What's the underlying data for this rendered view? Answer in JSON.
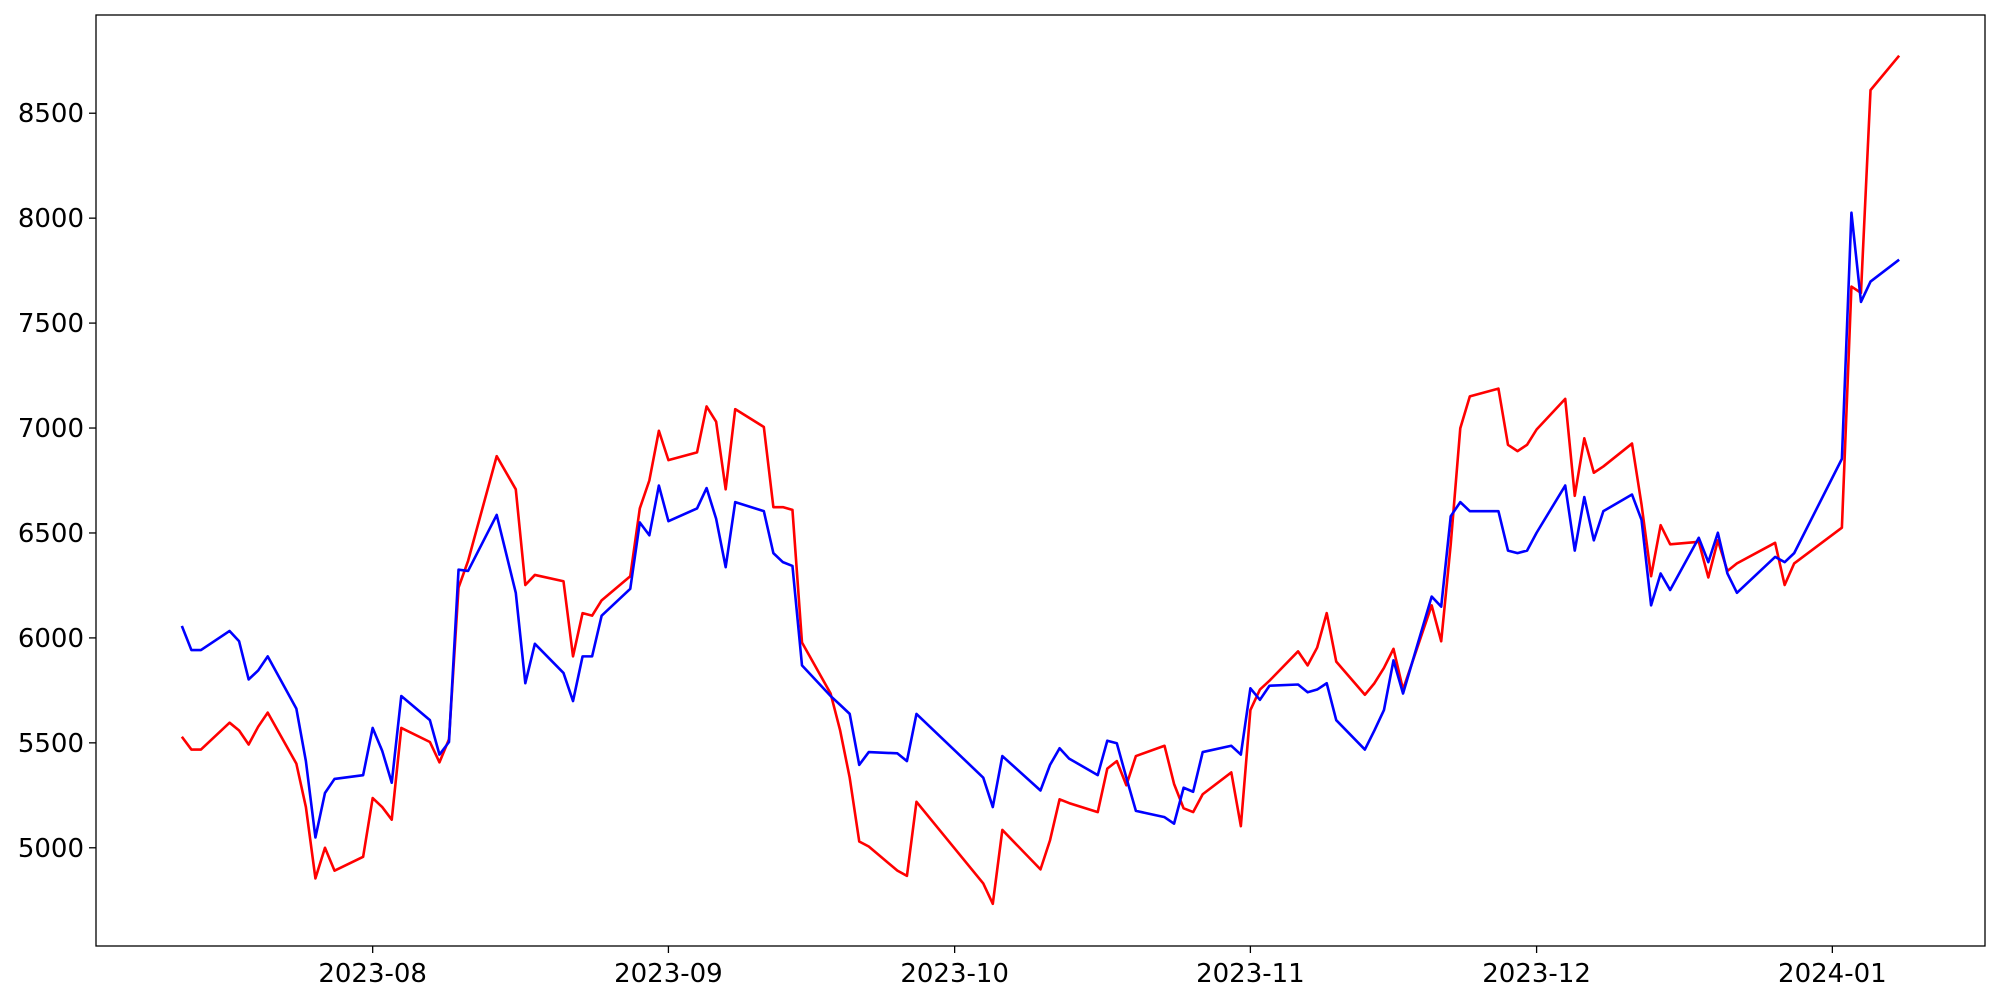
{
  "chart_data": {
    "type": "line",
    "x": [
      "2023-07-12",
      "2023-07-13",
      "2023-07-14",
      "2023-07-17",
      "2023-07-18",
      "2023-07-19",
      "2023-07-20",
      "2023-07-21",
      "2023-07-24",
      "2023-07-25",
      "2023-07-26",
      "2023-07-27",
      "2023-07-28",
      "2023-07-31",
      "2023-08-01",
      "2023-08-02",
      "2023-08-03",
      "2023-08-04",
      "2023-08-07",
      "2023-08-08",
      "2023-08-09",
      "2023-08-10",
      "2023-08-11",
      "2023-08-14",
      "2023-08-16",
      "2023-08-17",
      "2023-08-18",
      "2023-08-21",
      "2023-08-22",
      "2023-08-23",
      "2023-08-24",
      "2023-08-25",
      "2023-08-28",
      "2023-08-29",
      "2023-08-30",
      "2023-08-31",
      "2023-09-01",
      "2023-09-04",
      "2023-09-05",
      "2023-09-06",
      "2023-09-07",
      "2023-09-08",
      "2023-09-11",
      "2023-09-12",
      "2023-09-13",
      "2023-09-14",
      "2023-09-15",
      "2023-09-18",
      "2023-09-19",
      "2023-09-20",
      "2023-09-21",
      "2023-09-22",
      "2023-09-25",
      "2023-09-26",
      "2023-09-27",
      "2023-10-04",
      "2023-10-05",
      "2023-10-06",
      "2023-10-10",
      "2023-10-11",
      "2023-10-12",
      "2023-10-13",
      "2023-10-16",
      "2023-10-17",
      "2023-10-18",
      "2023-10-19",
      "2023-10-20",
      "2023-10-23",
      "2023-10-24",
      "2023-10-25",
      "2023-10-26",
      "2023-10-27",
      "2023-10-30",
      "2023-10-31",
      "2023-11-01",
      "2023-11-02",
      "2023-11-03",
      "2023-11-06",
      "2023-11-07",
      "2023-11-08",
      "2023-11-09",
      "2023-11-10",
      "2023-11-13",
      "2023-11-14",
      "2023-11-15",
      "2023-11-16",
      "2023-11-17",
      "2023-11-20",
      "2023-11-21",
      "2023-11-22",
      "2023-11-23",
      "2023-11-24",
      "2023-11-27",
      "2023-11-28",
      "2023-11-29",
      "2023-11-30",
      "2023-12-01",
      "2023-12-04",
      "2023-12-05",
      "2023-12-06",
      "2023-12-07",
      "2023-12-08",
      "2023-12-11",
      "2023-12-12",
      "2023-12-13",
      "2023-12-14",
      "2023-12-15",
      "2023-12-18",
      "2023-12-19",
      "2023-12-20",
      "2023-12-21",
      "2023-12-22",
      "2023-12-26",
      "2023-12-27",
      "2023-12-28",
      "2024-01-02",
      "2024-01-03",
      "2024-01-04",
      "2024-01-05",
      "2024-01-08"
    ],
    "series": [
      {
        "color": "#ff0000",
        "values": [
          5529,
          5468,
          5468,
          5596,
          5559,
          5492,
          5577,
          5644,
          5401,
          5194,
          4854,
          5000,
          4891,
          4957,
          5237,
          5194,
          5134,
          5571,
          5504,
          5407,
          5517,
          6240,
          6367,
          6866,
          6708,
          6252,
          6300,
          6270,
          5912,
          6118,
          6106,
          6179,
          6294,
          6617,
          6750,
          6987,
          6847,
          6884,
          7103,
          7030,
          6708,
          7090,
          7005,
          6623,
          6623,
          6610,
          5978,
          5735,
          5559,
          5334,
          5030,
          5006,
          4891,
          4866,
          5219,
          4830,
          4733,
          5085,
          4897,
          5036,
          5231,
          5213,
          5170,
          5377,
          5413,
          5298,
          5437,
          5486,
          5304,
          5188,
          5170,
          5255,
          5359,
          5103,
          5656,
          5754,
          5796,
          5936,
          5869,
          5954,
          6118,
          5887,
          5729,
          5784,
          5857,
          5948,
          5754,
          6155,
          5984,
          6446,
          6999,
          7151,
          7188,
          6920,
          6890,
          6920,
          6993,
          7139,
          6677,
          6951,
          6787,
          6817,
          6926,
          6635,
          6294,
          6537,
          6446,
          6458,
          6288,
          6465,
          6319,
          6355,
          6453,
          6252,
          6355,
          6525,
          7674,
          7644,
          8610,
          8774
        ]
      },
      {
        "color": "#0000ff",
        "values": [
          6057,
          5942,
          5942,
          6033,
          5984,
          5802,
          5845,
          5912,
          5663,
          5413,
          5049,
          5261,
          5328,
          5346,
          5571,
          5462,
          5310,
          5723,
          5608,
          5444,
          5504,
          6325,
          6319,
          6586,
          6215,
          5784,
          5972,
          5833,
          5699,
          5912,
          5912,
          6106,
          6234,
          6550,
          6489,
          6726,
          6556,
          6617,
          6714,
          6568,
          6337,
          6647,
          6604,
          6404,
          6361,
          6343,
          5869,
          5723,
          5681,
          5638,
          5395,
          5456,
          5450,
          5413,
          5638,
          5334,
          5194,
          5437,
          5273,
          5395,
          5474,
          5425,
          5346,
          5510,
          5498,
          5334,
          5176,
          5146,
          5115,
          5286,
          5267,
          5456,
          5486,
          5444,
          5760,
          5705,
          5772,
          5778,
          5741,
          5754,
          5784,
          5608,
          5468,
          5559,
          5656,
          5893,
          5735,
          6197,
          6149,
          6580,
          6647,
          6604,
          6604,
          6416,
          6404,
          6416,
          6501,
          6726,
          6416,
          6671,
          6465,
          6604,
          6683,
          6562,
          6155,
          6307,
          6228,
          6477,
          6361,
          6501,
          6307,
          6215,
          6386,
          6361,
          6404,
          6853,
          8026,
          7601,
          7698,
          7802
        ]
      }
    ],
    "xlim": [
      "2023-07-03",
      "2024-01-17"
    ],
    "xticks": [
      {
        "value": "2023-08-01",
        "label": "2023-08"
      },
      {
        "value": "2023-09-01",
        "label": "2023-09"
      },
      {
        "value": "2023-10-01",
        "label": "2023-10"
      },
      {
        "value": "2023-11-01",
        "label": "2023-11"
      },
      {
        "value": "2023-12-01",
        "label": "2023-12"
      },
      {
        "value": "2024-01-01",
        "label": "2024-01"
      }
    ],
    "ylim": [
      4532,
      8968
    ],
    "yticks": [
      5000,
      5500,
      6000,
      6500,
      7000,
      7500,
      8000,
      8500
    ],
    "grid": false
  }
}
